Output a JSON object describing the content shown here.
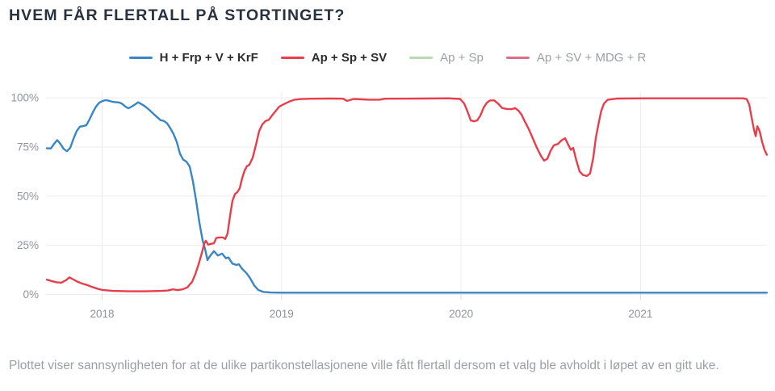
{
  "title": "HVEM FÅR FLERTALL PÅ STORTINGET?",
  "caption": "Plottet viser sannsynligheten for at de ulike partikonstellasjonene ville fått flertall dersom et valg ble avholdt i løpet av en gitt uke.",
  "colors": {
    "title_text": "#27313f",
    "axis_text": "#8f9399",
    "grid_line": "#ececec",
    "tick_line": "#dcdcdc",
    "caption_text": "#9aa0a4",
    "blue_series": "#3a86c5",
    "red_series": "#e83e4c",
    "green_series": "#b7dcb1",
    "pink_series": "#e06c8c"
  },
  "chart_data": {
    "type": "line",
    "title": "HVEM FÅR FLERTALL PÅ STORTINGET?",
    "xlabel": "",
    "ylabel": "",
    "grid": true,
    "legend_position": "top-center",
    "x_axis": {
      "range": [
        2017.69,
        2021.705
      ],
      "ticks": [
        {
          "value": 2018,
          "label": "2018"
        },
        {
          "value": 2019,
          "label": "2019"
        },
        {
          "value": 2020,
          "label": "2020"
        },
        {
          "value": 2021,
          "label": "2021"
        }
      ]
    },
    "y_axis": {
      "range": [
        0,
        100
      ],
      "unit": "%",
      "ticks": [
        {
          "value": 0,
          "label": "0%"
        },
        {
          "value": 25,
          "label": "25%"
        },
        {
          "value": 50,
          "label": "50%"
        },
        {
          "value": 75,
          "label": "75%"
        },
        {
          "value": 100,
          "label": "100%"
        }
      ]
    },
    "series": [
      {
        "id": "h-frp-v-krf",
        "name": "H + Frp + V + KrF",
        "color": "#3a86c5",
        "active": true,
        "points": [
          [
            2017.692,
            74.3
          ],
          [
            2017.714,
            74.2
          ],
          [
            2017.732,
            76.5
          ],
          [
            2017.75,
            78.5
          ],
          [
            2017.768,
            76.5
          ],
          [
            2017.786,
            74.0
          ],
          [
            2017.804,
            72.8
          ],
          [
            2017.822,
            74.5
          ],
          [
            2017.84,
            79.0
          ],
          [
            2017.858,
            83.0
          ],
          [
            2017.876,
            85.3
          ],
          [
            2017.894,
            85.6
          ],
          [
            2017.912,
            86.0
          ],
          [
            2017.93,
            89.0
          ],
          [
            2017.948,
            92.5
          ],
          [
            2017.966,
            95.5
          ],
          [
            2017.984,
            97.5
          ],
          [
            2018.002,
            98.3
          ],
          [
            2018.02,
            98.8
          ],
          [
            2018.038,
            98.5
          ],
          [
            2018.056,
            98.0
          ],
          [
            2018.074,
            97.8
          ],
          [
            2018.092,
            97.6
          ],
          [
            2018.11,
            97.0
          ],
          [
            2018.128,
            95.6
          ],
          [
            2018.146,
            94.6
          ],
          [
            2018.164,
            95.5
          ],
          [
            2018.182,
            96.5
          ],
          [
            2018.2,
            97.7
          ],
          [
            2018.218,
            96.8
          ],
          [
            2018.236,
            95.8
          ],
          [
            2018.254,
            94.5
          ],
          [
            2018.272,
            93.0
          ],
          [
            2018.29,
            91.5
          ],
          [
            2018.308,
            90.0
          ],
          [
            2018.326,
            88.6
          ],
          [
            2018.344,
            88.2
          ],
          [
            2018.362,
            87.0
          ],
          [
            2018.38,
            84.5
          ],
          [
            2018.398,
            81.5
          ],
          [
            2018.416,
            77.5
          ],
          [
            2018.434,
            71.5
          ],
          [
            2018.452,
            68.5
          ],
          [
            2018.47,
            67.5
          ],
          [
            2018.488,
            65.0
          ],
          [
            2018.506,
            57.5
          ],
          [
            2018.524,
            47.5
          ],
          [
            2018.542,
            36.5
          ],
          [
            2018.56,
            27.5
          ],
          [
            2018.574,
            23.0
          ],
          [
            2018.587,
            17.5
          ],
          [
            2018.601,
            19.5
          ],
          [
            2018.623,
            22.0
          ],
          [
            2018.645,
            19.8
          ],
          [
            2018.668,
            20.8
          ],
          [
            2018.69,
            18.4
          ],
          [
            2018.704,
            18.8
          ],
          [
            2018.726,
            15.7
          ],
          [
            2018.749,
            15.0
          ],
          [
            2018.762,
            15.4
          ],
          [
            2018.78,
            13.0
          ],
          [
            2018.803,
            11.0
          ],
          [
            2018.825,
            8.2
          ],
          [
            2018.848,
            4.5
          ],
          [
            2018.87,
            2.3
          ],
          [
            2018.897,
            1.3
          ],
          [
            2018.938,
            1.0
          ],
          [
            2019.0,
            0.9
          ],
          [
            2019.1,
            0.9
          ],
          [
            2019.4,
            0.9
          ],
          [
            2019.7,
            0.9
          ],
          [
            2020.0,
            0.9
          ],
          [
            2020.3,
            0.9
          ],
          [
            2020.6,
            0.9
          ],
          [
            2020.9,
            0.9
          ],
          [
            2021.2,
            0.9
          ],
          [
            2021.45,
            0.9
          ],
          [
            2021.704,
            0.9
          ]
        ]
      },
      {
        "id": "ap-sp-sv",
        "name": "Ap + Sp + SV",
        "color": "#e83e4c",
        "active": true,
        "points": [
          [
            2017.692,
            7.5
          ],
          [
            2017.719,
            6.8
          ],
          [
            2017.746,
            6.2
          ],
          [
            2017.773,
            6.0
          ],
          [
            2017.8,
            7.3
          ],
          [
            2017.818,
            8.7
          ],
          [
            2017.836,
            7.8
          ],
          [
            2017.863,
            6.5
          ],
          [
            2017.89,
            5.5
          ],
          [
            2017.917,
            4.8
          ],
          [
            2017.944,
            3.8
          ],
          [
            2017.971,
            3.0
          ],
          [
            2018.0,
            2.3
          ],
          [
            2018.061,
            1.8
          ],
          [
            2018.151,
            1.6
          ],
          [
            2018.241,
            1.6
          ],
          [
            2018.331,
            1.8
          ],
          [
            2018.367,
            2.0
          ],
          [
            2018.394,
            2.6
          ],
          [
            2018.421,
            2.2
          ],
          [
            2018.448,
            2.6
          ],
          [
            2018.475,
            3.6
          ],
          [
            2018.502,
            6.5
          ],
          [
            2018.52,
            10.5
          ],
          [
            2018.538,
            15.5
          ],
          [
            2018.556,
            21.2
          ],
          [
            2018.569,
            25.8
          ],
          [
            2018.578,
            27.3
          ],
          [
            2018.591,
            25.3
          ],
          [
            2018.609,
            25.8
          ],
          [
            2018.623,
            26.0
          ],
          [
            2018.636,
            28.7
          ],
          [
            2018.654,
            29.0
          ],
          [
            2018.672,
            29.0
          ],
          [
            2018.686,
            28.2
          ],
          [
            2018.699,
            31.0
          ],
          [
            2018.713,
            40.0
          ],
          [
            2018.726,
            47.5
          ],
          [
            2018.74,
            51.0
          ],
          [
            2018.753,
            52.0
          ],
          [
            2018.767,
            54.0
          ],
          [
            2018.78,
            59.0
          ],
          [
            2018.794,
            63.0
          ],
          [
            2018.807,
            65.2
          ],
          [
            2018.821,
            66.0
          ],
          [
            2018.839,
            69.5
          ],
          [
            2018.857,
            76.0
          ],
          [
            2018.875,
            83.0
          ],
          [
            2018.893,
            86.5
          ],
          [
            2018.911,
            88.2
          ],
          [
            2018.929,
            88.8
          ],
          [
            2018.947,
            91.0
          ],
          [
            2018.965,
            93.0
          ],
          [
            2018.987,
            95.5
          ],
          [
            2019.014,
            96.8
          ],
          [
            2019.041,
            98.0
          ],
          [
            2019.073,
            99.0
          ],
          [
            2019.104,
            99.3
          ],
          [
            2019.163,
            99.5
          ],
          [
            2019.275,
            99.6
          ],
          [
            2019.343,
            99.5
          ],
          [
            2019.365,
            98.4
          ],
          [
            2019.401,
            99.4
          ],
          [
            2019.491,
            99.0
          ],
          [
            2019.545,
            99.0
          ],
          [
            2019.577,
            99.5
          ],
          [
            2019.77,
            99.6
          ],
          [
            2019.928,
            99.7
          ],
          [
            2019.995,
            99.4
          ],
          [
            2020.018,
            97.0
          ],
          [
            2020.036,
            93.0
          ],
          [
            2020.054,
            88.5
          ],
          [
            2020.072,
            88.0
          ],
          [
            2020.09,
            88.5
          ],
          [
            2020.108,
            91.0
          ],
          [
            2020.126,
            95.0
          ],
          [
            2020.144,
            97.5
          ],
          [
            2020.162,
            98.6
          ],
          [
            2020.184,
            98.7
          ],
          [
            2020.207,
            97.0
          ],
          [
            2020.229,
            94.8
          ],
          [
            2020.256,
            94.3
          ],
          [
            2020.283,
            94.2
          ],
          [
            2020.301,
            94.8
          ],
          [
            2020.319,
            93.5
          ],
          [
            2020.337,
            91.5
          ],
          [
            2020.355,
            88.0
          ],
          [
            2020.378,
            84.0
          ],
          [
            2020.4,
            79.3
          ],
          [
            2020.423,
            74.5
          ],
          [
            2020.445,
            70.5
          ],
          [
            2020.463,
            68.0
          ],
          [
            2020.481,
            69.0
          ],
          [
            2020.499,
            73.0
          ],
          [
            2020.517,
            75.8
          ],
          [
            2020.54,
            76.5
          ],
          [
            2020.562,
            78.5
          ],
          [
            2020.58,
            79.4
          ],
          [
            2020.598,
            76.0
          ],
          [
            2020.612,
            73.5
          ],
          [
            2020.625,
            74.5
          ],
          [
            2020.643,
            68.0
          ],
          [
            2020.661,
            62.5
          ],
          [
            2020.679,
            60.8
          ],
          [
            2020.701,
            60.2
          ],
          [
            2020.719,
            61.5
          ],
          [
            2020.737,
            69.5
          ],
          [
            2020.751,
            79.5
          ],
          [
            2020.769,
            88.0
          ],
          [
            2020.782,
            93.5
          ],
          [
            2020.796,
            97.0
          ],
          [
            2020.818,
            99.0
          ],
          [
            2020.872,
            99.6
          ],
          [
            2021.03,
            99.7
          ],
          [
            2021.255,
            99.7
          ],
          [
            2021.48,
            99.7
          ],
          [
            2021.57,
            99.7
          ],
          [
            2021.592,
            99.3
          ],
          [
            2021.606,
            96.5
          ],
          [
            2021.619,
            90.0
          ],
          [
            2021.633,
            83.5
          ],
          [
            2021.642,
            80.5
          ],
          [
            2021.651,
            85.5
          ],
          [
            2021.664,
            83.0
          ],
          [
            2021.678,
            77.5
          ],
          [
            2021.691,
            73.5
          ],
          [
            2021.704,
            71.0
          ]
        ]
      },
      {
        "id": "ap-sp",
        "name": "Ap + Sp",
        "color": "#b7dcb1",
        "active": false,
        "points": []
      },
      {
        "id": "ap-sv-mdg-r",
        "name": "Ap + SV + MDG + R",
        "color": "#e06c8c",
        "active": false,
        "points": []
      }
    ]
  }
}
